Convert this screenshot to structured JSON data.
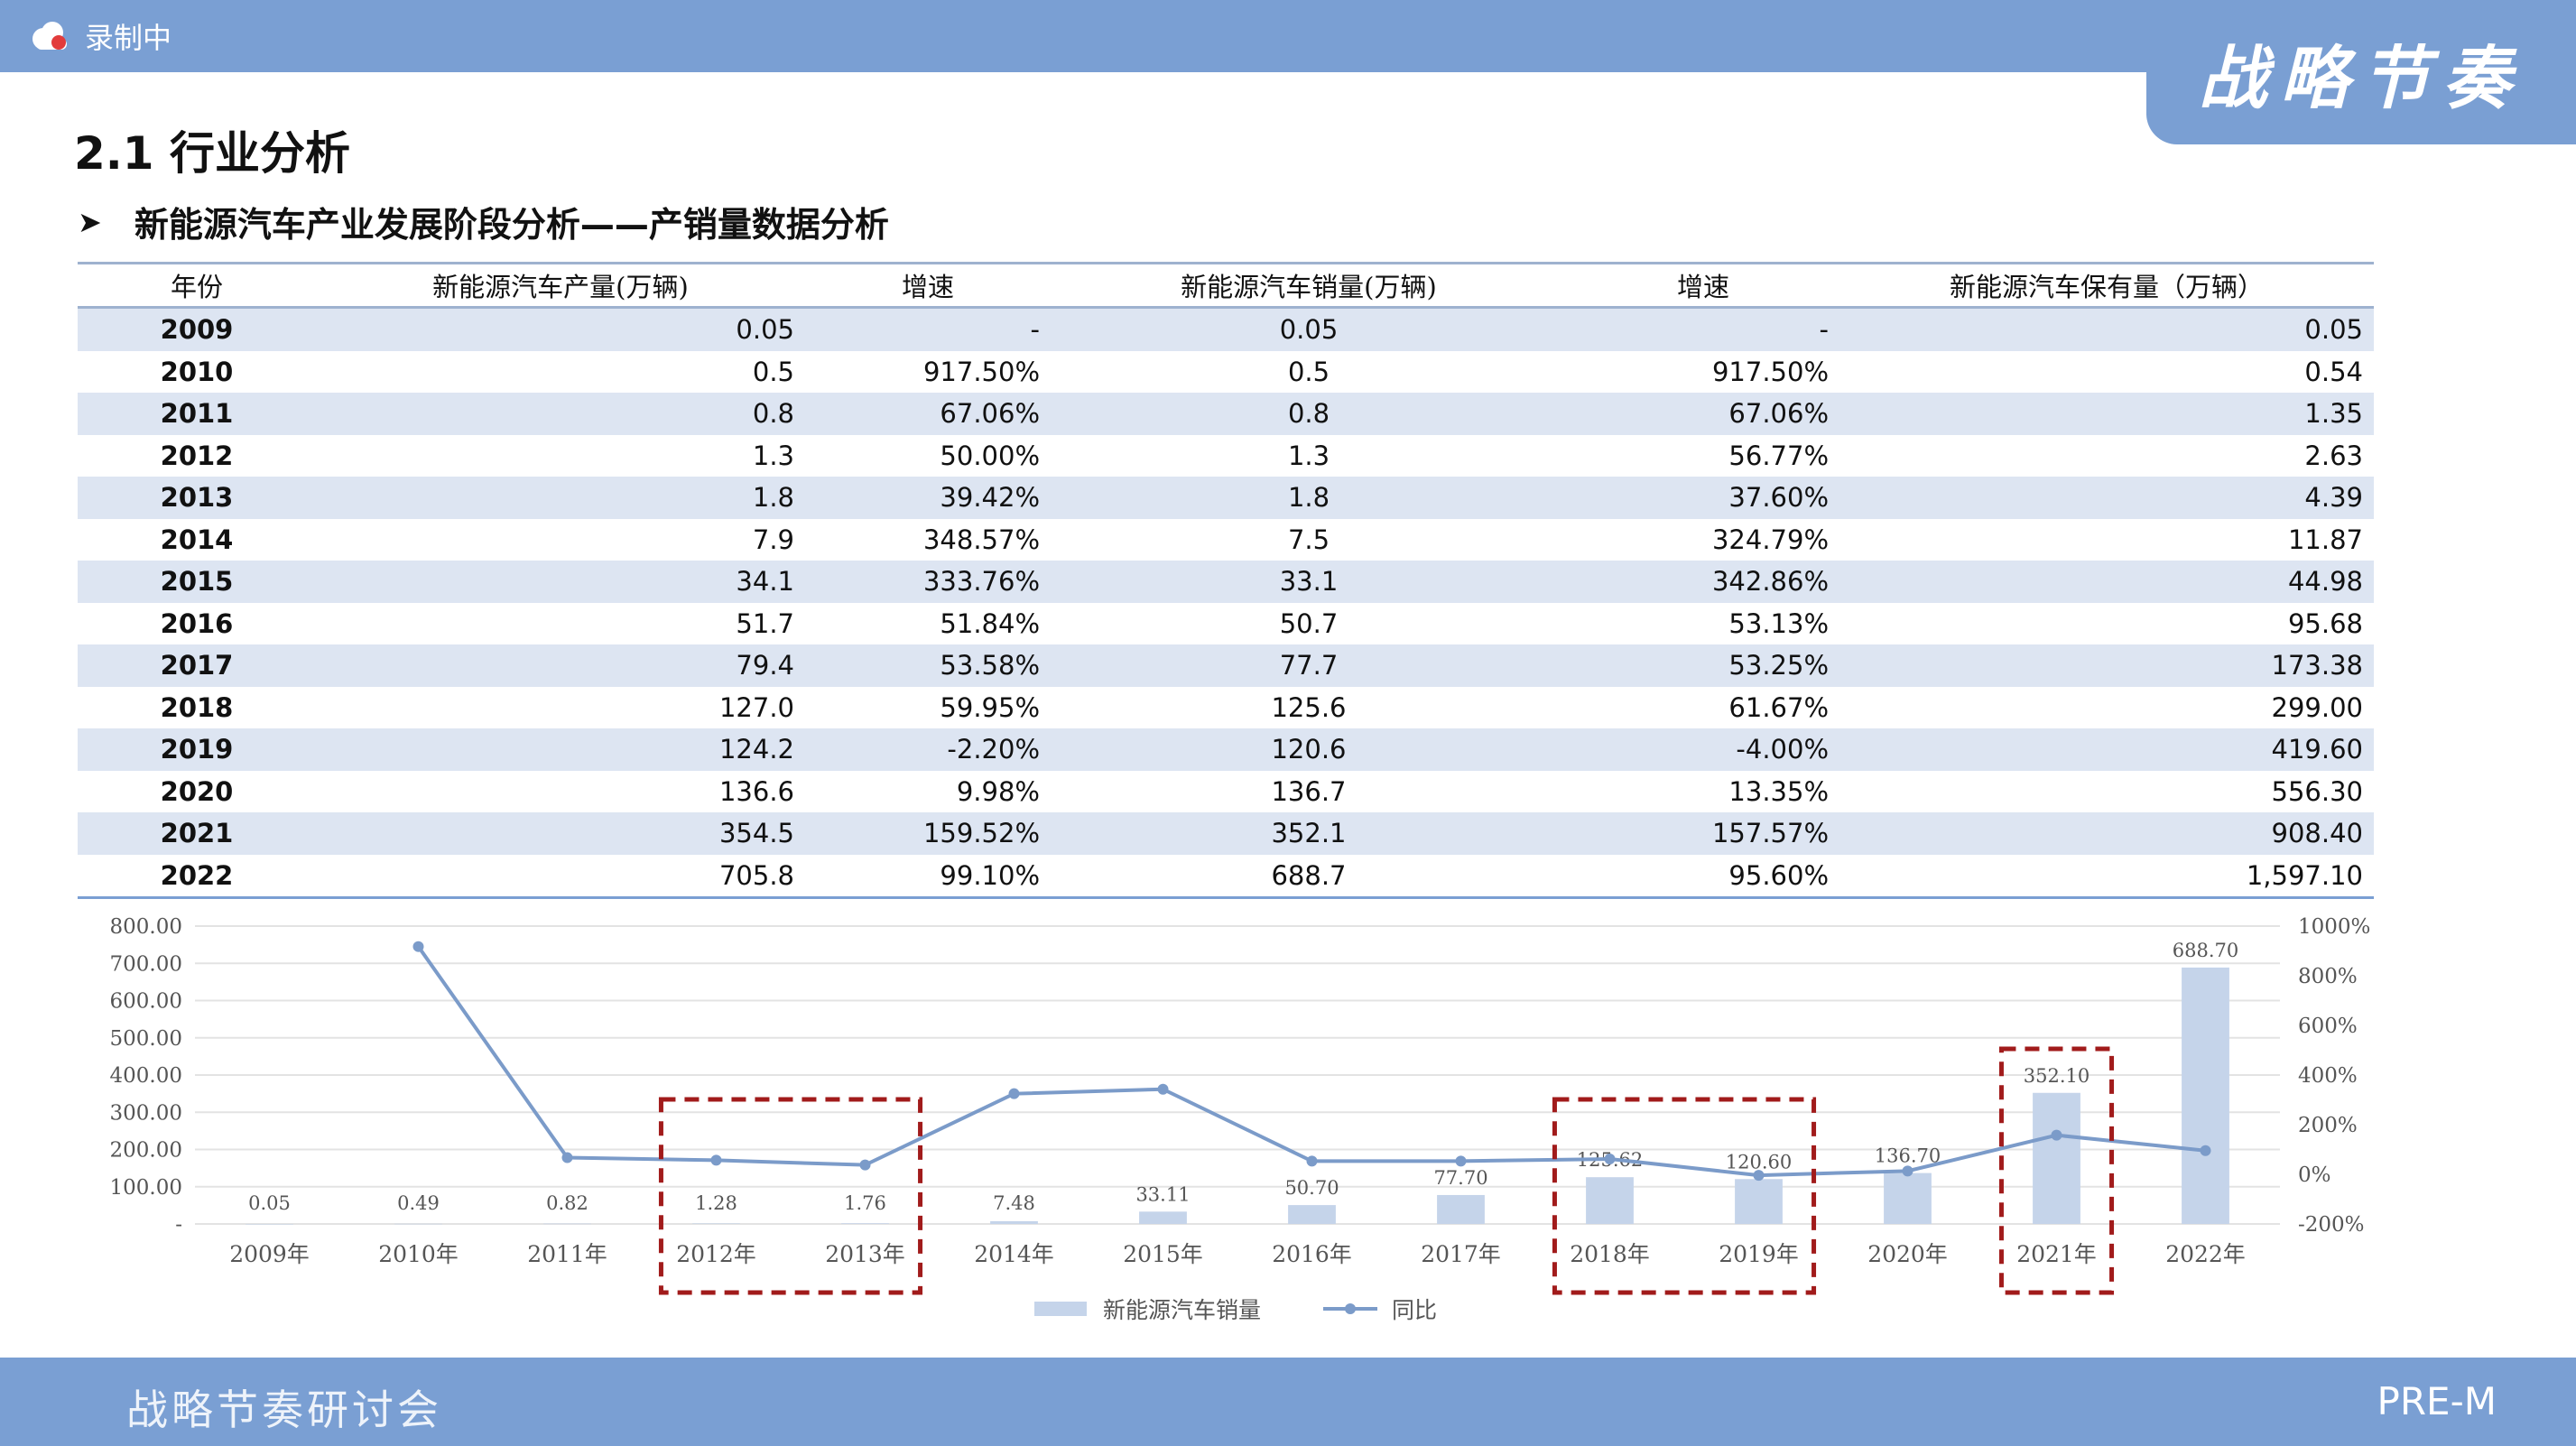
{
  "topbar": {
    "recording_label": "录制中"
  },
  "banner": {
    "text": "战略节奏"
  },
  "page": {
    "title": "2.1 行业分析",
    "subtitle": "新能源汽车产业发展阶段分析——产销量数据分析"
  },
  "table": {
    "headers": [
      "年份",
      "新能源汽车产量(万辆)",
      "增速",
      "新能源汽车销量(万辆)",
      "增速",
      "新能源汽车保有量（万辆）"
    ],
    "rows": [
      [
        "2009",
        "0.05",
        "-",
        "0.05",
        "-",
        "0.05"
      ],
      [
        "2010",
        "0.5",
        "917.50%",
        "0.5",
        "917.50%",
        "0.54"
      ],
      [
        "2011",
        "0.8",
        "67.06%",
        "0.8",
        "67.06%",
        "1.35"
      ],
      [
        "2012",
        "1.3",
        "50.00%",
        "1.3",
        "56.77%",
        "2.63"
      ],
      [
        "2013",
        "1.8",
        "39.42%",
        "1.8",
        "37.60%",
        "4.39"
      ],
      [
        "2014",
        "7.9",
        "348.57%",
        "7.5",
        "324.79%",
        "11.87"
      ],
      [
        "2015",
        "34.1",
        "333.76%",
        "33.1",
        "342.86%",
        "44.98"
      ],
      [
        "2016",
        "51.7",
        "51.84%",
        "50.7",
        "53.13%",
        "95.68"
      ],
      [
        "2017",
        "79.4",
        "53.58%",
        "77.7",
        "53.25%",
        "173.38"
      ],
      [
        "2018",
        "127.0",
        "59.95%",
        "125.6",
        "61.67%",
        "299.00"
      ],
      [
        "2019",
        "124.2",
        "-2.20%",
        "120.6",
        "-4.00%",
        "419.60"
      ],
      [
        "2020",
        "136.6",
        "9.98%",
        "136.7",
        "13.35%",
        "556.30"
      ],
      [
        "2021",
        "354.5",
        "159.52%",
        "352.1",
        "157.57%",
        "908.40"
      ],
      [
        "2022",
        "705.8",
        "99.10%",
        "688.7",
        "95.60%",
        "1,597.10"
      ]
    ]
  },
  "chart_data": {
    "type": "bar",
    "categories": [
      "2009年",
      "2010年",
      "2011年",
      "2012年",
      "2013年",
      "2014年",
      "2015年",
      "2016年",
      "2017年",
      "2018年",
      "2019年",
      "2020年",
      "2021年",
      "2022年"
    ],
    "series": [
      {
        "name": "新能源汽车销量",
        "type": "bar",
        "axis": "left",
        "values": [
          0.05,
          0.49,
          0.82,
          1.28,
          1.76,
          7.48,
          33.11,
          50.7,
          77.7,
          125.62,
          120.6,
          136.7,
          352.1,
          688.7
        ],
        "labels": [
          "0.05",
          "0.49",
          "0.82",
          "1.28",
          "1.76",
          "7.48",
          "33.11",
          "50.70",
          "77.70",
          "125.62",
          "120.60",
          "136.70",
          "352.10",
          "688.70"
        ]
      },
      {
        "name": "同比",
        "type": "line",
        "axis": "right",
        "values": [
          null,
          917.5,
          67.06,
          56.77,
          37.6,
          324.79,
          342.86,
          53.13,
          53.25,
          61.67,
          -4.0,
          13.35,
          157.57,
          95.6
        ]
      }
    ],
    "ylim": [
      0,
      800
    ],
    "y2lim": [
      -200,
      1000
    ],
    "yticks": [
      "-",
      "100.00",
      "200.00",
      "300.00",
      "400.00",
      "500.00",
      "600.00",
      "700.00",
      "800.00"
    ],
    "y2ticks": [
      "-200%",
      "0%",
      "200%",
      "400%",
      "600%",
      "800%",
      "1000%"
    ],
    "legend_position": "bottom",
    "highlight_groups": [
      [
        "2012年",
        "2013年"
      ],
      [
        "2018年",
        "2019年"
      ],
      [
        "2021年"
      ]
    ],
    "colors": {
      "bar": "#c5d4ea",
      "line": "#7b9bc9",
      "highlight": "#a11b1b",
      "grid": "#e3e3e3",
      "label": "#555555"
    }
  },
  "footer": {
    "left": "战略节奏研讨会",
    "right": "PRE-M"
  }
}
